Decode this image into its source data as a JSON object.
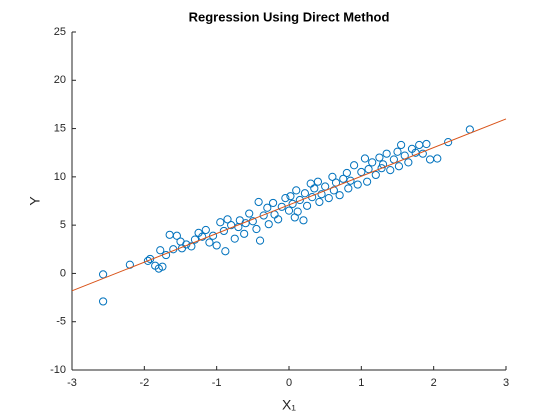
{
  "chart_data": {
    "type": "scatter",
    "title": "Regression Using Direct Method",
    "xlabel": "X₁",
    "ylabel": "Y",
    "xlim": [
      -3,
      3
    ],
    "ylim": [
      -10,
      25
    ],
    "xticks": [
      -3,
      -2,
      -1,
      0,
      1,
      2,
      3
    ],
    "yticks": [
      -10,
      -5,
      0,
      5,
      10,
      15,
      20,
      25
    ],
    "grid": false,
    "scatter": {
      "color": "#0072BD",
      "x": [
        -2.57,
        -2.57,
        -2.2,
        -1.95,
        -1.92,
        -1.85,
        -1.8,
        -1.78,
        -1.75,
        -1.7,
        -1.65,
        -1.6,
        -1.55,
        -1.5,
        -1.48,
        -1.42,
        -1.35,
        -1.3,
        -1.25,
        -1.2,
        -1.15,
        -1.1,
        -1.05,
        -1.0,
        -0.95,
        -0.9,
        -0.88,
        -0.85,
        -0.8,
        -0.75,
        -0.7,
        -0.68,
        -0.62,
        -0.6,
        -0.55,
        -0.5,
        -0.45,
        -0.42,
        -0.4,
        -0.35,
        -0.3,
        -0.28,
        -0.22,
        -0.2,
        -0.15,
        -0.1,
        -0.05,
        0.0,
        0.02,
        0.05,
        0.08,
        0.1,
        0.12,
        0.15,
        0.2,
        0.22,
        0.25,
        0.3,
        0.32,
        0.35,
        0.4,
        0.42,
        0.45,
        0.5,
        0.55,
        0.6,
        0.62,
        0.65,
        0.7,
        0.75,
        0.8,
        0.82,
        0.85,
        0.9,
        0.95,
        1.0,
        1.05,
        1.08,
        1.1,
        1.15,
        1.2,
        1.25,
        1.28,
        1.3,
        1.35,
        1.4,
        1.45,
        1.5,
        1.52,
        1.55,
        1.6,
        1.65,
        1.7,
        1.75,
        1.8,
        1.85,
        1.9,
        1.95,
        2.05,
        2.2,
        2.5
      ],
      "y": [
        -0.1,
        -2.9,
        0.9,
        1.3,
        1.5,
        0.8,
        0.5,
        2.4,
        0.7,
        1.9,
        4.0,
        2.5,
        3.9,
        3.3,
        2.6,
        3.0,
        2.8,
        3.5,
        4.2,
        3.8,
        4.5,
        3.2,
        3.9,
        2.9,
        5.3,
        4.4,
        2.3,
        5.6,
        5.0,
        3.6,
        4.8,
        5.5,
        4.1,
        5.2,
        6.2,
        5.4,
        4.6,
        7.4,
        3.4,
        6.0,
        6.8,
        5.1,
        7.3,
        6.1,
        5.6,
        6.9,
        7.8,
        6.5,
        8.0,
        7.2,
        5.8,
        8.6,
        6.4,
        7.6,
        5.5,
        8.3,
        7.0,
        9.3,
        7.9,
        8.8,
        9.5,
        7.4,
        8.2,
        9.0,
        7.8,
        10.0,
        8.6,
        9.4,
        8.1,
        9.8,
        10.4,
        8.8,
        9.6,
        11.2,
        9.2,
        10.5,
        11.9,
        9.5,
        10.8,
        11.5,
        10.2,
        12.0,
        10.9,
        11.3,
        12.4,
        10.7,
        11.8,
        12.6,
        11.1,
        13.3,
        12.2,
        11.5,
        12.9,
        12.5,
        13.3,
        12.4,
        13.4,
        11.8,
        11.9,
        13.6,
        14.9
      ]
    },
    "fit_line": {
      "color": "#D95319",
      "x": [
        -3,
        3
      ],
      "y": [
        -1.8,
        16
      ]
    }
  }
}
